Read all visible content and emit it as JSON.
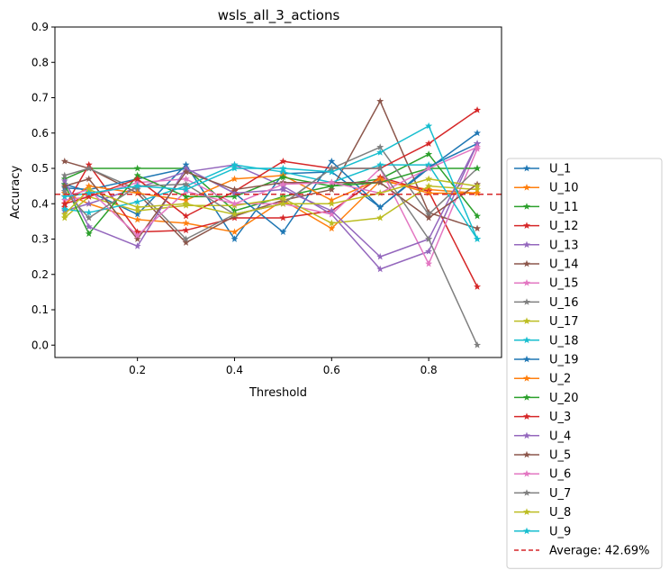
{
  "chart_data": {
    "type": "line",
    "title": "wsls_all_3_actions",
    "xlabel": "Threshold",
    "ylabel": "Accuracy",
    "xlim": [
      0.03,
      0.95
    ],
    "ylim": [
      -0.035,
      0.9
    ],
    "xticks": [
      0.2,
      0.4,
      0.6,
      0.8
    ],
    "yticks": [
      0.0,
      0.1,
      0.2,
      0.3,
      0.4,
      0.5,
      0.6,
      0.7,
      0.8,
      0.9
    ],
    "x": [
      0.05,
      0.1,
      0.2,
      0.3,
      0.4,
      0.5,
      0.6,
      0.7,
      0.8,
      0.9
    ],
    "legend_position": "outside-right",
    "marker": "star",
    "series": [
      {
        "name": "U_1",
        "color": "#1f77b4",
        "values": [
          0.455,
          0.435,
          0.37,
          0.51,
          0.3,
          0.485,
          0.49,
          0.39,
          0.505,
          0.57
        ]
      },
      {
        "name": "U_10",
        "color": "#ff7f0e",
        "values": [
          0.43,
          0.4,
          0.355,
          0.345,
          0.32,
          0.41,
          0.33,
          0.465,
          0.44,
          0.43
        ]
      },
      {
        "name": "U_11",
        "color": "#2ca02c",
        "values": [
          0.47,
          0.5,
          0.5,
          0.5,
          0.38,
          0.42,
          0.45,
          0.47,
          0.54,
          0.365
        ]
      },
      {
        "name": "U_12",
        "color": "#d62728",
        "values": [
          0.39,
          0.51,
          0.32,
          0.325,
          0.36,
          0.36,
          0.38,
          0.475,
          0.435,
          0.165
        ]
      },
      {
        "name": "U_13",
        "color": "#9467bd",
        "values": [
          0.38,
          0.4,
          0.445,
          0.49,
          0.51,
          0.45,
          0.37,
          0.215,
          0.265,
          0.57
        ]
      },
      {
        "name": "U_14",
        "color": "#8c564b",
        "values": [
          0.52,
          0.5,
          0.43,
          0.29,
          0.365,
          0.41,
          0.44,
          0.69,
          0.375,
          0.33
        ]
      },
      {
        "name": "U_15",
        "color": "#e377c2",
        "values": [
          0.41,
          0.42,
          0.46,
          0.47,
          0.4,
          0.4,
          0.37,
          0.5,
          0.23,
          0.555
        ]
      },
      {
        "name": "U_16",
        "color": "#7f7f7f",
        "values": [
          0.48,
          0.5,
          0.44,
          0.3,
          0.37,
          0.4,
          0.5,
          0.56,
          0.37,
          0.5
        ]
      },
      {
        "name": "U_17",
        "color": "#bcbd22",
        "values": [
          0.36,
          0.42,
          0.38,
          0.395,
          0.395,
          0.415,
          0.345,
          0.36,
          0.45,
          0.44
        ]
      },
      {
        "name": "U_18",
        "color": "#17becf",
        "values": [
          0.385,
          0.375,
          0.405,
          0.45,
          0.51,
          0.49,
          0.46,
          0.51,
          0.51,
          0.3
        ]
      },
      {
        "name": "U_19",
        "color": "#1f77b4",
        "values": [
          0.445,
          0.44,
          0.47,
          0.5,
          0.43,
          0.32,
          0.52,
          0.39,
          0.5,
          0.6
        ]
      },
      {
        "name": "U_2",
        "color": "#ff7f0e",
        "values": [
          0.4,
          0.45,
          0.43,
          0.41,
          0.47,
          0.48,
          0.41,
          0.47,
          0.43,
          0.43
        ]
      },
      {
        "name": "U_20",
        "color": "#2ca02c",
        "values": [
          0.455,
          0.315,
          0.48,
          0.42,
          0.42,
          0.475,
          0.45,
          0.46,
          0.5,
          0.5
        ]
      },
      {
        "name": "U_3",
        "color": "#d62728",
        "values": [
          0.4,
          0.42,
          0.47,
          0.365,
          0.435,
          0.52,
          0.5,
          0.5,
          0.57,
          0.665
        ]
      },
      {
        "name": "U_4",
        "color": "#9467bd",
        "values": [
          0.465,
          0.335,
          0.28,
          0.5,
          0.43,
          0.44,
          0.38,
          0.25,
          0.3,
          0.57
        ]
      },
      {
        "name": "U_5",
        "color": "#8c564b",
        "values": [
          0.45,
          0.47,
          0.3,
          0.49,
          0.44,
          0.46,
          0.46,
          0.46,
          0.36,
          0.455
        ]
      },
      {
        "name": "U_6",
        "color": "#e377c2",
        "values": [
          0.42,
          0.44,
          0.31,
          0.435,
          0.4,
          0.455,
          0.46,
          0.43,
          0.5,
          0.56
        ]
      },
      {
        "name": "U_7",
        "color": "#7f7f7f",
        "values": [
          0.435,
          0.36,
          0.45,
          0.455,
          0.37,
          0.4,
          0.5,
          0.5,
          0.3,
          0.0
        ]
      },
      {
        "name": "U_8",
        "color": "#bcbd22",
        "values": [
          0.37,
          0.44,
          0.39,
          0.4,
          0.37,
          0.4,
          0.4,
          0.43,
          0.47,
          0.45
        ]
      },
      {
        "name": "U_9",
        "color": "#17becf",
        "values": [
          0.42,
          0.43,
          0.45,
          0.44,
          0.5,
          0.5,
          0.49,
          0.545,
          0.62,
          0.3
        ]
      }
    ],
    "average": {
      "name": "Average: 42.69%",
      "value": 0.4269,
      "color": "#d62728",
      "style": "dashed"
    }
  }
}
